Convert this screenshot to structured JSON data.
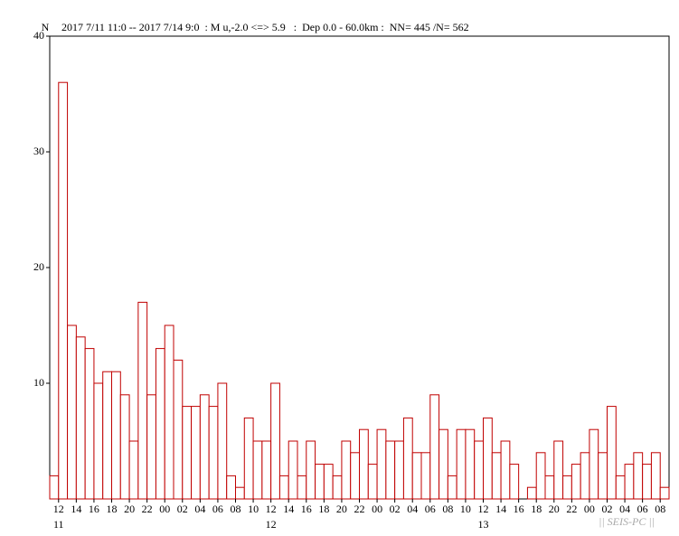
{
  "chart_data": {
    "type": "histogram",
    "ylabel": "N",
    "title": "2017 7/11 11:0 -- 2017 7/14 9:0  : M u,-2.0 <=> 5.9   :  Dep 0.0 - 60.0km :  NN= 445 /N= 562",
    "watermark": "|| SEIS-PC ||",
    "color": "#c00000",
    "bins": [
      0,
      1,
      2,
      3,
      4,
      5,
      6,
      7,
      8,
      9,
      10,
      11,
      12,
      13,
      14,
      15,
      16,
      17,
      18,
      19,
      20,
      21,
      22,
      23,
      24,
      25,
      26,
      27,
      28,
      29,
      30,
      31,
      32,
      33,
      34,
      35,
      36,
      37,
      38,
      39,
      40,
      41,
      42,
      43,
      44,
      45,
      46,
      47,
      48,
      49,
      50,
      51,
      52,
      53,
      54,
      55,
      56,
      57,
      58,
      59,
      60,
      61,
      62,
      63,
      64,
      65,
      66,
      67,
      68,
      69,
      70
    ],
    "values": [
      2,
      36,
      15,
      14,
      13,
      10,
      11,
      11,
      9,
      5,
      17,
      9,
      13,
      15,
      12,
      8,
      8,
      9,
      8,
      10,
      2,
      1,
      7,
      5,
      5,
      10,
      2,
      5,
      2,
      5,
      3,
      3,
      2,
      5,
      4,
      6,
      3,
      6,
      5,
      5,
      7,
      4,
      4,
      9,
      6,
      2,
      6,
      6,
      5,
      7,
      4,
      5,
      3,
      0,
      1,
      4,
      2,
      5,
      2,
      3,
      4,
      6,
      4,
      8,
      2,
      3,
      4,
      3,
      4,
      1
    ],
    "xlim": [
      0,
      70
    ],
    "ylim": [
      0,
      40
    ],
    "yticks": [
      10,
      20,
      30,
      40
    ],
    "xticks": [
      {
        "value": 1,
        "label": "12"
      },
      {
        "value": 3,
        "label": "14"
      },
      {
        "value": 5,
        "label": "16"
      },
      {
        "value": 7,
        "label": "18"
      },
      {
        "value": 9,
        "label": "20"
      },
      {
        "value": 11,
        "label": "22"
      },
      {
        "value": 13,
        "label": "00"
      },
      {
        "value": 15,
        "label": "02"
      },
      {
        "value": 17,
        "label": "04"
      },
      {
        "value": 19,
        "label": "06"
      },
      {
        "value": 21,
        "label": "08"
      },
      {
        "value": 23,
        "label": "10"
      },
      {
        "value": 25,
        "label": "12"
      },
      {
        "value": 27,
        "label": "14"
      },
      {
        "value": 29,
        "label": "16"
      },
      {
        "value": 31,
        "label": "18"
      },
      {
        "value": 33,
        "label": "20"
      },
      {
        "value": 35,
        "label": "22"
      },
      {
        "value": 37,
        "label": "00"
      },
      {
        "value": 39,
        "label": "02"
      },
      {
        "value": 41,
        "label": "04"
      },
      {
        "value": 43,
        "label": "06"
      },
      {
        "value": 45,
        "label": "08"
      },
      {
        "value": 47,
        "label": "10"
      },
      {
        "value": 49,
        "label": "12"
      },
      {
        "value": 51,
        "label": "14"
      },
      {
        "value": 53,
        "label": "16"
      },
      {
        "value": 55,
        "label": "18"
      },
      {
        "value": 57,
        "label": "20"
      },
      {
        "value": 59,
        "label": "22"
      },
      {
        "value": 61,
        "label": "00"
      },
      {
        "value": 63,
        "label": "02"
      },
      {
        "value": 65,
        "label": "04"
      },
      {
        "value": 67,
        "label": "06"
      },
      {
        "value": 69,
        "label": "08"
      }
    ],
    "xdays": [
      {
        "value": 1,
        "label": "11"
      },
      {
        "value": 25,
        "label": "12"
      },
      {
        "value": 49,
        "label": "13"
      }
    ]
  }
}
